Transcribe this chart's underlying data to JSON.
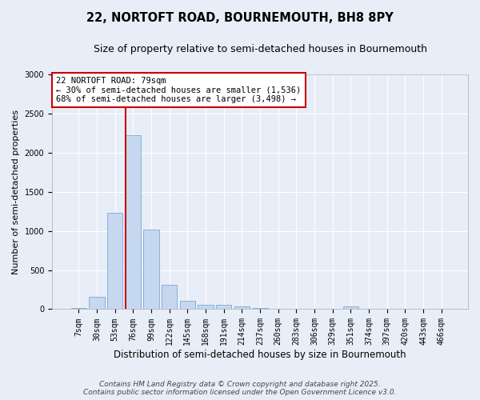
{
  "title_line1": "22, NORTOFT ROAD, BOURNEMOUTH, BH8 8PY",
  "title_line2": "Size of property relative to semi-detached houses in Bournemouth",
  "xlabel": "Distribution of semi-detached houses by size in Bournemouth",
  "ylabel": "Number of semi-detached properties",
  "footer_line1": "Contains HM Land Registry data © Crown copyright and database right 2025.",
  "footer_line2": "Contains public sector information licensed under the Open Government Licence v3.0.",
  "annotation_title": "22 NORTOFT ROAD: 79sqm",
  "annotation_line1": "← 30% of semi-detached houses are smaller (1,536)",
  "annotation_line2": "68% of semi-detached houses are larger (3,498) →",
  "bar_categories": [
    "7sqm",
    "30sqm",
    "53sqm",
    "76sqm",
    "99sqm",
    "122sqm",
    "145sqm",
    "168sqm",
    "191sqm",
    "214sqm",
    "237sqm",
    "260sqm",
    "283sqm",
    "306sqm",
    "329sqm",
    "351sqm",
    "374sqm",
    "397sqm",
    "420sqm",
    "443sqm",
    "466sqm"
  ],
  "bar_values": [
    20,
    155,
    1230,
    2220,
    1020,
    315,
    105,
    60,
    55,
    40,
    15,
    5,
    0,
    0,
    0,
    35,
    0,
    0,
    0,
    0,
    0
  ],
  "bar_color": "#c5d8f0",
  "bar_edge_color": "#7aabcf",
  "red_line_index": 3,
  "ylim": [
    0,
    3000
  ],
  "yticks": [
    0,
    500,
    1000,
    1500,
    2000,
    2500,
    3000
  ],
  "background_color": "#e8eef8",
  "grid_color": "#ffffff",
  "annotation_box_color": "#ffffff",
  "annotation_box_edge": "#cc0000",
  "red_line_color": "#cc0000",
  "title_fontsize": 10.5,
  "subtitle_fontsize": 9,
  "xlabel_fontsize": 8.5,
  "ylabel_fontsize": 8,
  "tick_fontsize": 7,
  "annotation_fontsize": 7.5,
  "footer_fontsize": 6.5
}
